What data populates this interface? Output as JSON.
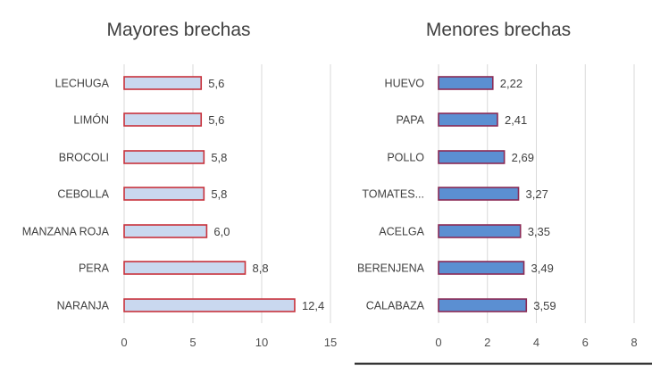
{
  "chart_data": [
    {
      "type": "bar",
      "orientation": "horizontal",
      "title": "Mayores brechas",
      "categories": [
        "LECHUGA",
        "LIMÓN",
        "BROCOLI",
        "CEBOLLA",
        "MANZANA ROJA",
        "PERA",
        "NARANJA"
      ],
      "values": [
        5.6,
        5.6,
        5.8,
        5.8,
        6.0,
        8.8,
        12.4
      ],
      "data_labels": [
        "5,6",
        "5,6",
        "5,8",
        "5,8",
        "6,0",
        "8,8",
        "12,4"
      ],
      "xlim": [
        0,
        15
      ],
      "xticks": [
        "0",
        "5",
        "10",
        "15"
      ],
      "tick_values": [
        0,
        5,
        10,
        15
      ],
      "grid": true,
      "bar_fill": "#c9d8ef",
      "bar_border": "#c8323c"
    },
    {
      "type": "bar",
      "orientation": "horizontal",
      "title": "Menores brechas",
      "categories": [
        "HUEVO",
        "PAPA",
        "POLLO",
        "TOMATES...",
        "ACELGA",
        "BERENJENA",
        "CALABAZA"
      ],
      "values": [
        2.22,
        2.41,
        2.69,
        3.27,
        3.35,
        3.49,
        3.59
      ],
      "data_labels": [
        "2,22",
        "2,41",
        "2,69",
        "3,27",
        "3,35",
        "3,49",
        "3,59"
      ],
      "xlim": [
        0,
        8
      ],
      "xticks": [
        "0",
        "2",
        "4",
        "6",
        "8"
      ],
      "tick_values": [
        0,
        2,
        4,
        6,
        8
      ],
      "grid": true,
      "bar_fill": "#5b8fd2",
      "bar_border": "#8a2a55"
    }
  ]
}
